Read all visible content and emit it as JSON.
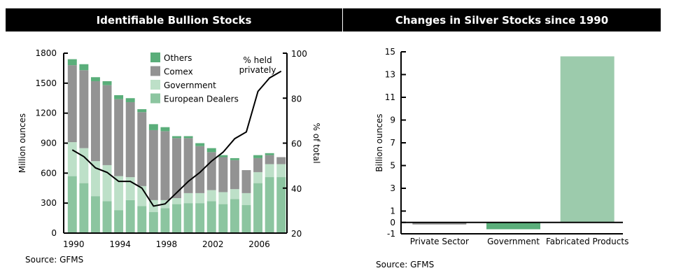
{
  "chart_data": [
    {
      "type": "bar",
      "stacked": true,
      "title": "Identifiable Bullion Stocks",
      "ylabel": "Million ounces",
      "y2label": "% of total",
      "ylim": [
        0,
        1800
      ],
      "y2lim": [
        20,
        100
      ],
      "yticks": [
        0,
        300,
        600,
        900,
        1200,
        1500,
        1800
      ],
      "y2ticks": [
        20,
        40,
        60,
        80,
        100
      ],
      "x": [
        1990,
        1991,
        1992,
        1993,
        1994,
        1995,
        1996,
        1997,
        1998,
        1999,
        2000,
        2001,
        2002,
        2003,
        2004,
        2005,
        2006,
        2007,
        2008
      ],
      "xtick_labels": [
        "1990",
        "1994",
        "1998",
        "2002",
        "2006"
      ],
      "series": [
        {
          "name": "European Dealers",
          "color": "#8cc5a0",
          "values": [
            570,
            500,
            370,
            320,
            230,
            330,
            270,
            210,
            250,
            290,
            300,
            300,
            320,
            290,
            340,
            280,
            500,
            560,
            560
          ]
        },
        {
          "name": "Government",
          "color": "#bde0c8",
          "values": [
            340,
            350,
            350,
            360,
            340,
            230,
            200,
            120,
            80,
            60,
            100,
            100,
            110,
            120,
            100,
            120,
            110,
            130,
            130
          ]
        },
        {
          "name": "Comex",
          "color": "#939393",
          "values": [
            770,
            780,
            800,
            800,
            770,
            750,
            740,
            700,
            690,
            600,
            550,
            470,
            380,
            350,
            290,
            230,
            140,
            90,
            70
          ]
        },
        {
          "name": "Others",
          "color": "#5aae7a",
          "values": [
            60,
            60,
            40,
            40,
            40,
            40,
            30,
            60,
            40,
            20,
            20,
            30,
            40,
            20,
            20,
            0,
            30,
            20,
            0
          ]
        }
      ],
      "line_series": {
        "name": "% held privately",
        "axis": "right",
        "color": "#000000",
        "x": [
          1990,
          1991,
          1992,
          1993,
          1994,
          1995,
          1996,
          1997,
          1998,
          1999,
          2000,
          2001,
          2002,
          2003,
          2004,
          2005,
          2006,
          2007,
          2008
        ],
        "values": [
          57,
          54,
          49,
          47,
          43,
          43,
          40,
          32,
          33,
          38,
          43,
          47,
          52,
          56,
          62,
          65,
          83,
          89,
          92
        ]
      },
      "legend": [
        "Others",
        "Comex",
        "Government",
        "European Dealers"
      ],
      "legend_position": "top-right",
      "annotation": "% held\nprivately",
      "source": "Source: GFMS"
    },
    {
      "type": "bar",
      "title": "Changes in Silver Stocks since 1990",
      "ylabel": "Billion ounces",
      "ylim": [
        -1,
        15
      ],
      "yticks": [
        -1,
        0,
        1,
        3,
        5,
        7,
        9,
        11,
        13,
        15
      ],
      "categories": [
        "Private Sector",
        "Government",
        "Fabricated Products"
      ],
      "values": [
        -0.1,
        -0.6,
        14.6
      ],
      "colors": [
        "#939393",
        "#5aae7a",
        "#9ccbac"
      ],
      "source": "Source: GFMS"
    }
  ]
}
